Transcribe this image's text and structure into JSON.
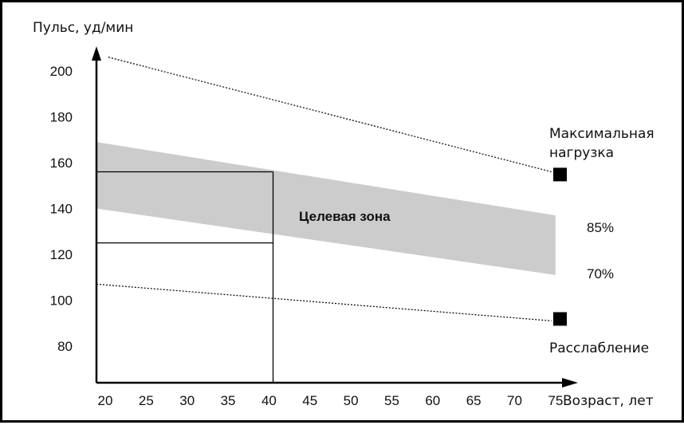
{
  "chart_data": {
    "type": "line",
    "ylabel": "Пульс, уд/мин",
    "xlabel": "Возраст, лет",
    "x_ticks": [
      20,
      25,
      30,
      35,
      40,
      45,
      50,
      55,
      60,
      65,
      70,
      75
    ],
    "y_ticks": [
      80,
      100,
      120,
      140,
      160,
      180,
      200
    ],
    "xlim": [
      20,
      75
    ],
    "ylim": [
      80,
      200
    ],
    "series": [
      {
        "name": "Максимальная нагрузка",
        "x": [
          20,
          75
        ],
        "y": [
          206,
          156
        ]
      },
      {
        "name": "Расслабление",
        "x": [
          20,
          75
        ],
        "y": [
          107,
          91
        ]
      }
    ],
    "band": {
      "upper": {
        "x": [
          20,
          75
        ],
        "y": [
          169,
          137
        ]
      },
      "lower": {
        "x": [
          20,
          75
        ],
        "y": [
          140,
          111
        ]
      }
    },
    "zone_label": "Целевая зона",
    "band_upper_label": "85%",
    "band_lower_label": "70%",
    "markers": [
      {
        "x": 75.5,
        "y": 155
      },
      {
        "x": 75.5,
        "y": 92
      }
    ],
    "reference_box": {
      "x_max": 40.5,
      "y_low": 125,
      "y_high": 156
    },
    "legend_labels": {
      "max": [
        "Максимальная",
        "нагрузка"
      ],
      "rest": "Расслабление"
    },
    "colors": {
      "band": "#cccccc",
      "line": "#000000",
      "marker": "#000000"
    },
    "grid": false
  }
}
